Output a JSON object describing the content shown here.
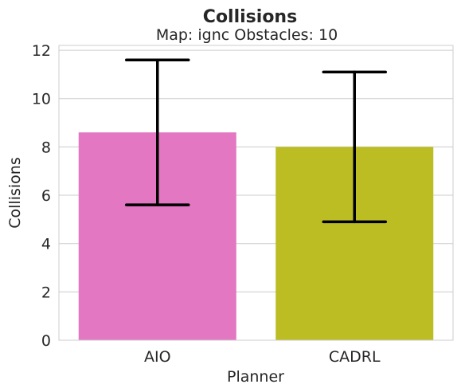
{
  "chart_data": {
    "type": "bar",
    "title": "Collisions",
    "subtitle": "Map: ignc Obstacles: 10",
    "xlabel": "Planner",
    "ylabel": "Collisions",
    "categories": [
      "AIO",
      "CADRL"
    ],
    "values": [
      8.6,
      8.0
    ],
    "error_low": [
      5.6,
      4.9
    ],
    "error_high": [
      11.6,
      11.1
    ],
    "colors": [
      "#e377c2",
      "#bcbd22"
    ],
    "ylim": [
      0,
      12.2
    ],
    "yticks": [
      0,
      2,
      4,
      6,
      8,
      10,
      12
    ],
    "grid": true,
    "grid_axis": "y",
    "legend": "none"
  }
}
